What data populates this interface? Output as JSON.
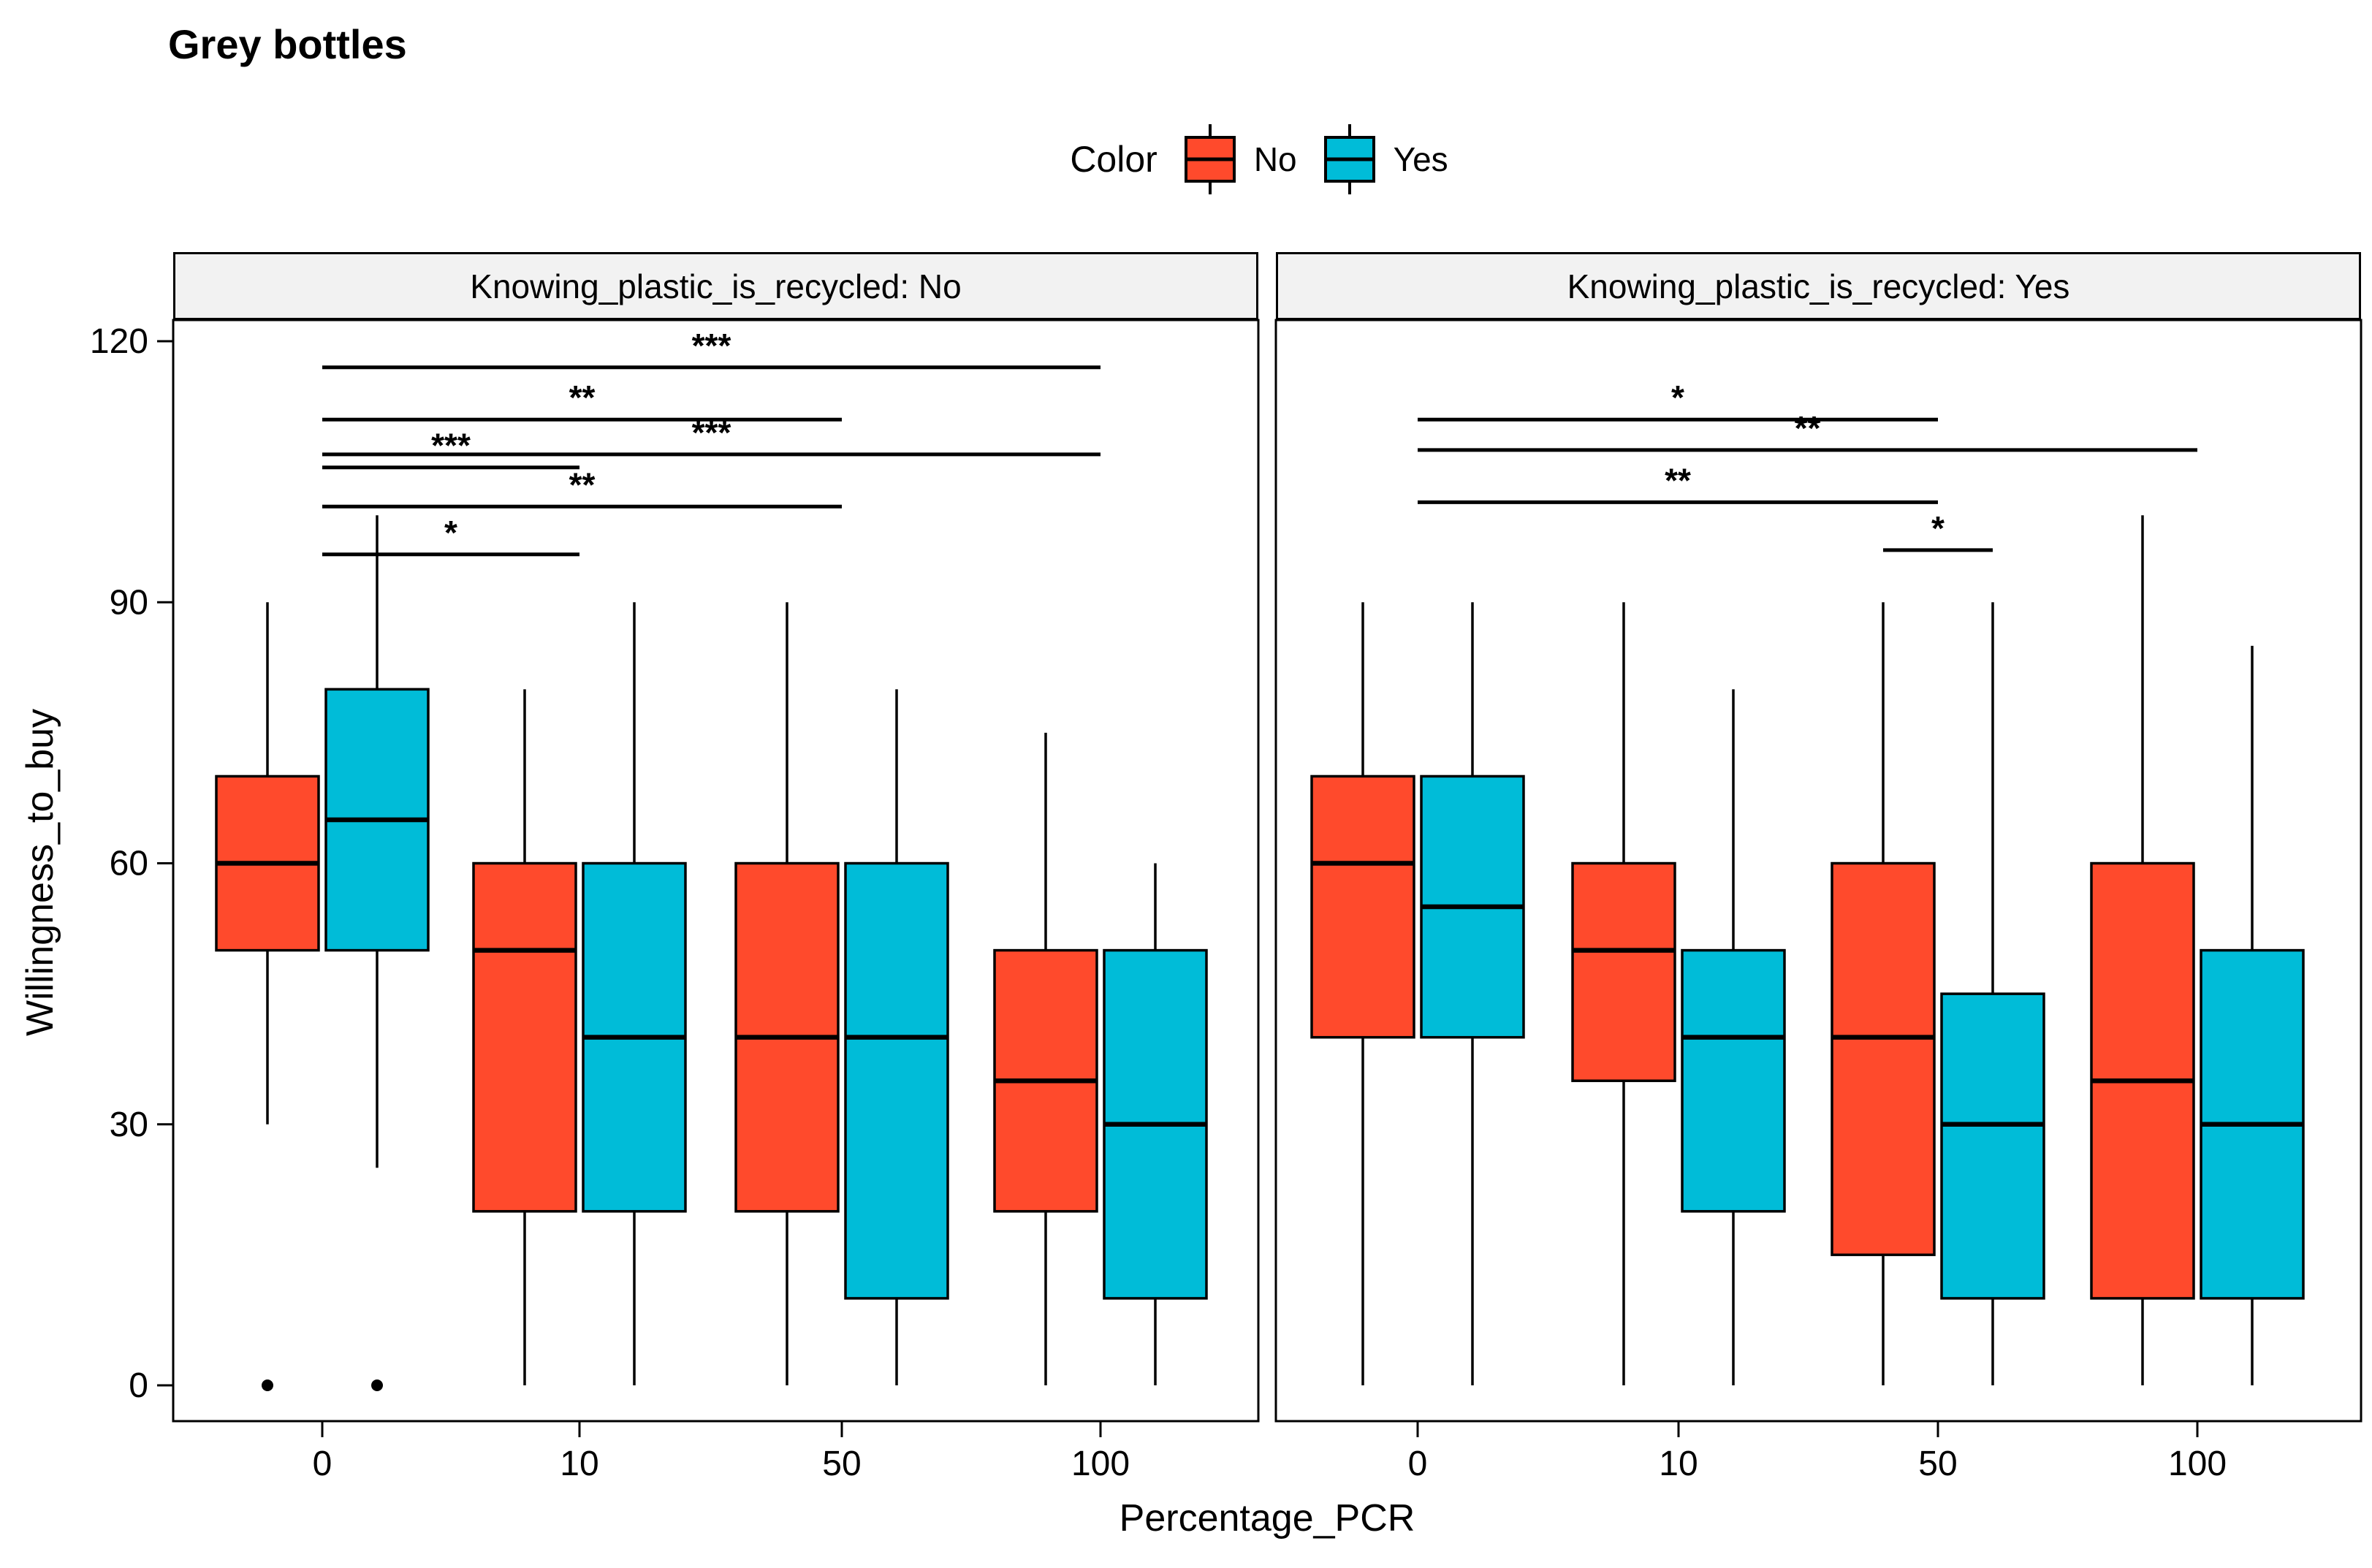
{
  "title": "Grey bottles",
  "chart_data": {
    "type": "grouped_boxplot",
    "title": "Grey bottles",
    "xlabel": "Percentage_PCR",
    "ylabel": "Willingness_to_buy",
    "x_categories": [
      "0",
      "10",
      "50",
      "100"
    ],
    "y_ticks": [
      0,
      30,
      60,
      90,
      120
    ],
    "ylim": [
      -4,
      122.5
    ],
    "grid": "off",
    "legend": {
      "title": "Color",
      "position": "top",
      "entries": [
        {
          "label": "No",
          "color": "#FF4A2C"
        },
        {
          "label": "Yes",
          "color": "#00BCD8"
        }
      ]
    },
    "colors": {
      "series_no": "#FF4A2C",
      "series_yes": "#00BCD8",
      "strip_bg": "#F2F2F2",
      "stroke": "#000000"
    },
    "facets": [
      {
        "strip_label": "Knowing_plastic_is_recycled: No",
        "groups": [
          {
            "category": "0",
            "boxes": [
              {
                "series": "No",
                "whisker_low": 30,
                "q1": 50,
                "median": 60,
                "q3": 70,
                "whisker_high": 90,
                "outliers": [
                  0
                ]
              },
              {
                "series": "Yes",
                "whisker_low": 25,
                "q1": 50,
                "median": 65,
                "q3": 80,
                "whisker_high": 100,
                "outliers": [
                  0
                ]
              }
            ]
          },
          {
            "category": "10",
            "boxes": [
              {
                "series": "No",
                "whisker_low": 0,
                "q1": 20,
                "median": 50,
                "q3": 60,
                "whisker_high": 80,
                "outliers": []
              },
              {
                "series": "Yes",
                "whisker_low": 0,
                "q1": 20,
                "median": 40,
                "q3": 60,
                "whisker_high": 90,
                "outliers": []
              }
            ]
          },
          {
            "category": "50",
            "boxes": [
              {
                "series": "No",
                "whisker_low": 0,
                "q1": 20,
                "median": 40,
                "q3": 60,
                "whisker_high": 90,
                "outliers": []
              },
              {
                "series": "Yes",
                "whisker_low": 0,
                "q1": 10,
                "median": 40,
                "q3": 60,
                "whisker_high": 80,
                "outliers": []
              }
            ]
          },
          {
            "category": "100",
            "boxes": [
              {
                "series": "No",
                "whisker_low": 0,
                "q1": 20,
                "median": 35,
                "q3": 50,
                "whisker_high": 75,
                "outliers": []
              },
              {
                "series": "Yes",
                "whisker_low": 0,
                "q1": 10,
                "median": 30,
                "q3": 50,
                "whisker_high": 60,
                "outliers": []
              }
            ]
          }
        ],
        "significance_bars": [
          {
            "from": {
              "category": "0"
            },
            "to": {
              "category": "100"
            },
            "label": "***",
            "y_value": 117
          },
          {
            "from": {
              "category": "0"
            },
            "to": {
              "category": "50"
            },
            "label": "**",
            "y_value": 111
          },
          {
            "from": {
              "category": "0"
            },
            "to": {
              "category": "100"
            },
            "label": "***",
            "y_value": 107
          },
          {
            "from": {
              "category": "0"
            },
            "to": {
              "category": "10"
            },
            "label": "***",
            "y_value": 105.5
          },
          {
            "from": {
              "category": "0"
            },
            "to": {
              "category": "50"
            },
            "label": "**",
            "y_value": 101
          },
          {
            "from": {
              "category": "0"
            },
            "to": {
              "category": "10"
            },
            "label": "*",
            "y_value": 95.5
          }
        ]
      },
      {
        "strip_label": "Knowing_plastic_is_recycled: Yes",
        "groups": [
          {
            "category": "0",
            "boxes": [
              {
                "series": "No",
                "whisker_low": 0,
                "q1": 40,
                "median": 60,
                "q3": 70,
                "whisker_high": 90,
                "outliers": []
              },
              {
                "series": "Yes",
                "whisker_low": 0,
                "q1": 40,
                "median": 55,
                "q3": 70,
                "whisker_high": 90,
                "outliers": []
              }
            ]
          },
          {
            "category": "10",
            "boxes": [
              {
                "series": "No",
                "whisker_low": 0,
                "q1": 35,
                "median": 50,
                "q3": 60,
                "whisker_high": 90,
                "outliers": []
              },
              {
                "series": "Yes",
                "whisker_low": 0,
                "q1": 20,
                "median": 40,
                "q3": 50,
                "whisker_high": 80,
                "outliers": []
              }
            ]
          },
          {
            "category": "50",
            "boxes": [
              {
                "series": "No",
                "whisker_low": 0,
                "q1": 15,
                "median": 40,
                "q3": 60,
                "whisker_high": 90,
                "outliers": []
              },
              {
                "series": "Yes",
                "whisker_low": 0,
                "q1": 10,
                "median": 30,
                "q3": 45,
                "whisker_high": 90,
                "outliers": []
              }
            ]
          },
          {
            "category": "100",
            "boxes": [
              {
                "series": "No",
                "whisker_low": 0,
                "q1": 10,
                "median": 35,
                "q3": 60,
                "whisker_high": 100,
                "outliers": []
              },
              {
                "series": "Yes",
                "whisker_low": 0,
                "q1": 10,
                "median": 30,
                "q3": 50,
                "whisker_high": 85,
                "outliers": []
              }
            ]
          }
        ],
        "significance_bars": [
          {
            "from": {
              "category": "0"
            },
            "to": {
              "category": "50"
            },
            "label": "*",
            "y_value": 111
          },
          {
            "from": {
              "category": "0"
            },
            "to": {
              "category": "100"
            },
            "label": "**",
            "y_value": 107.5
          },
          {
            "from": {
              "category": "0"
            },
            "to": {
              "category": "50"
            },
            "label": "**",
            "y_value": 101.5
          },
          {
            "from": {
              "category": "50",
              "series": "No"
            },
            "to": {
              "category": "50",
              "series": "Yes"
            },
            "label": "*",
            "y_value": 96
          }
        ]
      }
    ]
  }
}
